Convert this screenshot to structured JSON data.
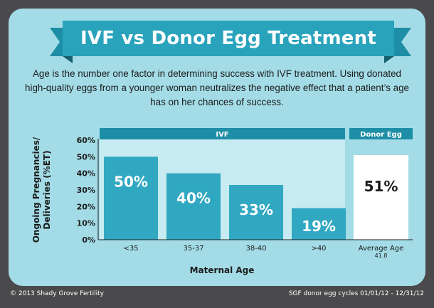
{
  "header": {
    "title": "IVF vs Donor Egg Treatment",
    "description": "Age is the number one factor in determining success with IVF treatment. Using donated high-quality eggs from a younger woman neutralizes the negative effect that a patient’s age has on her chances of success."
  },
  "colors": {
    "background": "#4a4a4c",
    "card": "#a3dce6",
    "ribbon": "#29a3bc",
    "ivf_bar": "#31a8c2",
    "ivf_panel": "#c6ebf1",
    "donor_bar": "#ffffff",
    "group_label_bg": "#1e8ea6"
  },
  "chart_data": {
    "type": "bar",
    "ylabel": "Ongoing Pregnancies/ Deliveries (%ET)",
    "xlabel": "Maternal Age",
    "ylim": [
      0,
      60
    ],
    "yticks": [
      "0%",
      "10%",
      "20%",
      "30%",
      "40%",
      "50%",
      "60%"
    ],
    "groups": [
      {
        "name": "IVF",
        "categories": [
          "<35",
          "35-37",
          "38-40",
          ">40"
        ],
        "values": [
          50,
          40,
          33,
          19
        ],
        "labels": [
          "50%",
          "40%",
          "33%",
          "19%"
        ]
      },
      {
        "name": "Donor Egg",
        "categories": [
          "Average Age"
        ],
        "category_sublabels": [
          "41.8"
        ],
        "values": [
          51
        ],
        "labels": [
          "51%"
        ]
      }
    ],
    "grid": false,
    "legend": "none"
  },
  "footer": {
    "left": "© 2013 Shady Grove Fertility",
    "right": "SGF donor egg cycles 01/01/12 - 12/31/12"
  }
}
